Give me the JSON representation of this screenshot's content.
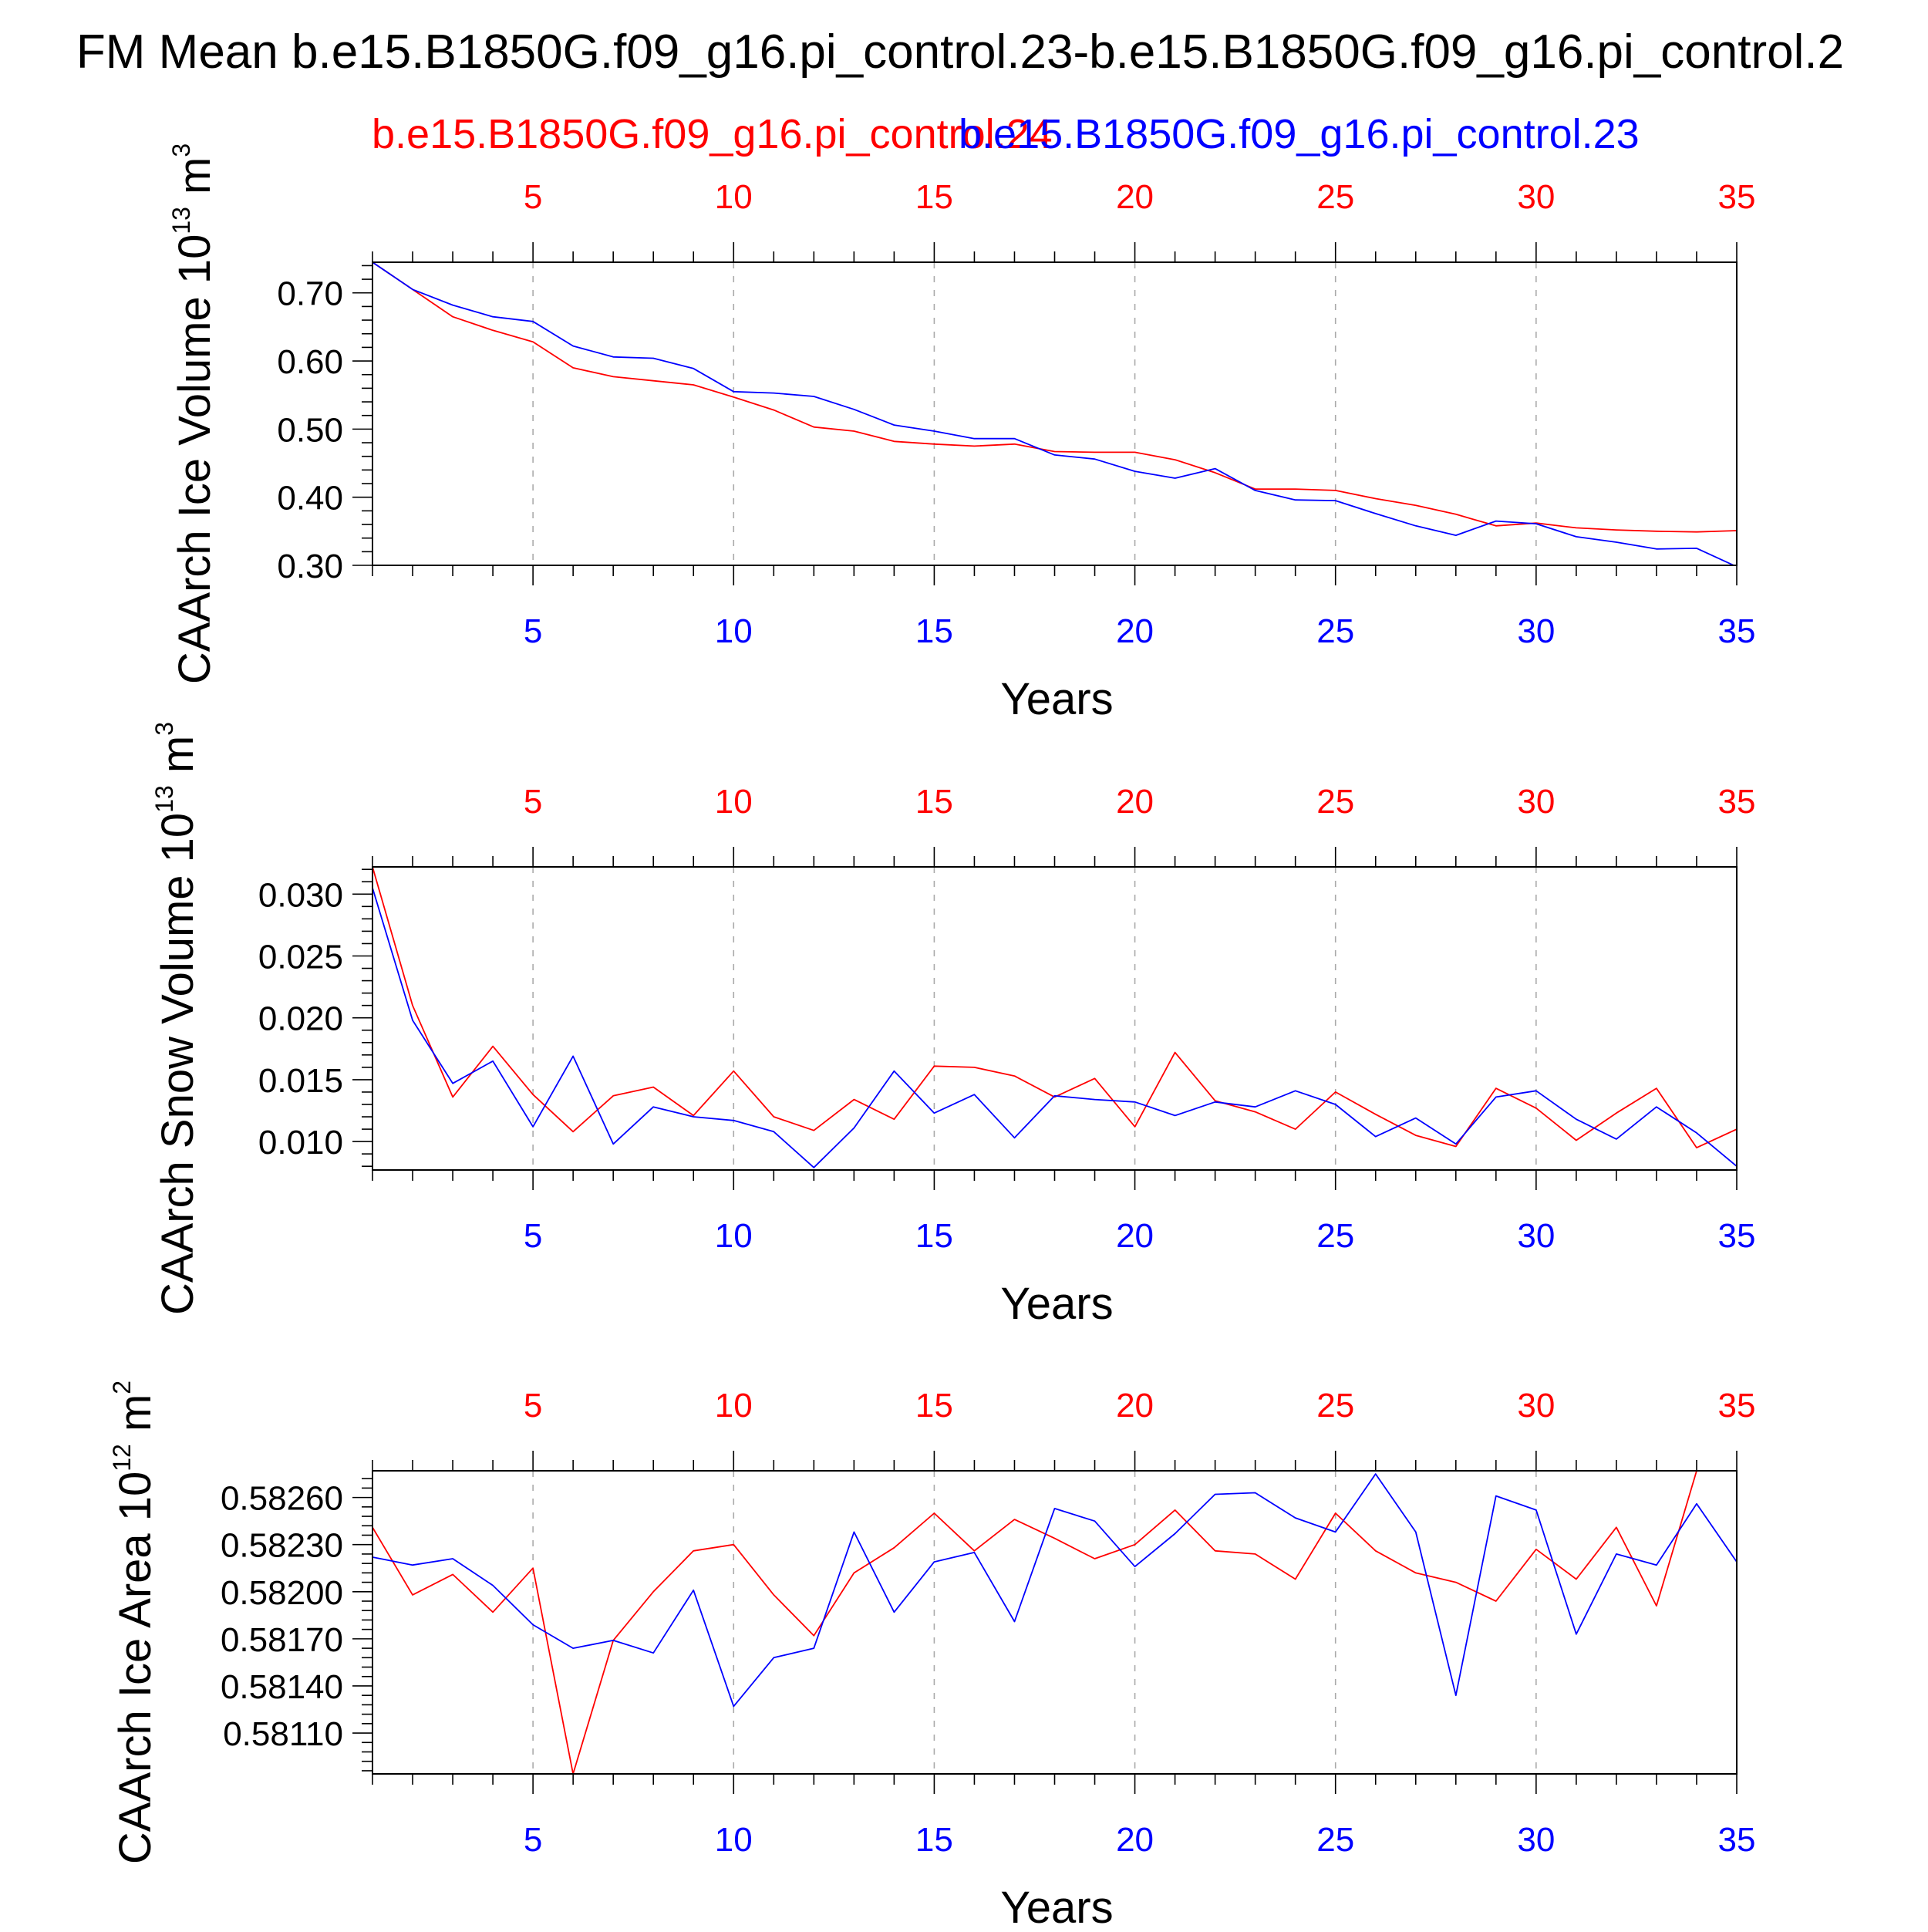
{
  "figure_title": "FM Mean b.e15.B1850G.f09_g16.pi_control.23-b.e15.B1850G.f09_g16.pi_control.2",
  "legend": {
    "red_label": "b.e15.B1850G.f09_g16.pi_control.24",
    "blue_label": "b.e15.B1850G.f09_g16.pi_control.23"
  },
  "colors": {
    "red": "#ff0000",
    "blue": "#0000ff",
    "axis": "#000000",
    "grid": "#aaaaaa"
  },
  "chart_data": [
    {
      "type": "line",
      "title": "",
      "ylabel": "CAArch Ice Volume 10",
      "ylabel_exp": "13",
      "ylabel_unit": " m",
      "ylabel_unit_exp": "3",
      "xlabel": "Years",
      "xlim": [
        1,
        35
      ],
      "ylim": [
        0.3,
        0.745
      ],
      "xticks": [
        5,
        10,
        15,
        20,
        25,
        30,
        35
      ],
      "xtick_labels": [
        "5",
        "10",
        "15",
        "20",
        "25",
        "30",
        "35"
      ],
      "yticks": [
        0.3,
        0.4,
        0.5,
        0.6,
        0.7
      ],
      "ytick_labels": [
        "0.30",
        "0.40",
        "0.50",
        "0.60",
        "0.70"
      ],
      "x": [
        1,
        2,
        3,
        4,
        5,
        6,
        7,
        8,
        9,
        10,
        11,
        12,
        13,
        14,
        15,
        16,
        17,
        18,
        19,
        20,
        21,
        22,
        23,
        24,
        25,
        26,
        27,
        28,
        29,
        30,
        31,
        32,
        33,
        34,
        35
      ],
      "series": [
        {
          "name": "b.e15.B1850G.f09_g16.pi_control.24",
          "color": "#ff0000",
          "values": [
            0.745,
            0.705,
            0.665,
            0.645,
            0.628,
            0.59,
            0.577,
            0.571,
            0.565,
            0.547,
            0.528,
            0.503,
            0.497,
            0.482,
            0.478,
            0.475,
            0.478,
            0.467,
            0.466,
            0.466,
            0.455,
            0.436,
            0.412,
            0.412,
            0.41,
            0.398,
            0.388,
            0.375,
            0.358,
            0.362,
            0.355,
            0.352,
            0.35,
            0.349,
            0.351
          ]
        },
        {
          "name": "b.e15.B1850G.f09_g16.pi_control.23",
          "color": "#0000ff",
          "values": [
            0.745,
            0.705,
            0.682,
            0.665,
            0.658,
            0.622,
            0.606,
            0.604,
            0.589,
            0.555,
            0.553,
            0.548,
            0.529,
            0.506,
            0.497,
            0.486,
            0.486,
            0.462,
            0.456,
            0.438,
            0.428,
            0.442,
            0.41,
            0.396,
            0.395,
            0.376,
            0.358,
            0.344,
            0.365,
            0.361,
            0.342,
            0.334,
            0.324,
            0.325,
            0.298
          ]
        }
      ]
    },
    {
      "type": "line",
      "title": "",
      "ylabel": "CAArch Snow Volume 10",
      "ylabel_exp": "13",
      "ylabel_unit": " m",
      "ylabel_unit_exp": "3",
      "xlabel": "Years",
      "xlim": [
        1,
        35
      ],
      "ylim": [
        0.0077,
        0.0322
      ],
      "xticks": [
        5,
        10,
        15,
        20,
        25,
        30,
        35
      ],
      "xtick_labels": [
        "5",
        "10",
        "15",
        "20",
        "25",
        "30",
        "35"
      ],
      "yticks": [
        0.01,
        0.015,
        0.02,
        0.025,
        0.03
      ],
      "ytick_labels": [
        "0.010",
        "0.015",
        "0.020",
        "0.025",
        "0.030"
      ],
      "x": [
        1,
        2,
        3,
        4,
        5,
        6,
        7,
        8,
        9,
        10,
        11,
        12,
        13,
        14,
        15,
        16,
        17,
        18,
        19,
        20,
        21,
        22,
        23,
        24,
        25,
        26,
        27,
        28,
        29,
        30,
        31,
        32,
        33,
        34,
        35
      ],
      "series": [
        {
          "name": "b.e15.B1850G.f09_g16.pi_control.24",
          "color": "#ff0000",
          "values": [
            0.0322,
            0.021,
            0.0136,
            0.0177,
            0.0138,
            0.0108,
            0.0137,
            0.0144,
            0.0121,
            0.0157,
            0.012,
            0.0109,
            0.0134,
            0.0118,
            0.0161,
            0.016,
            0.0153,
            0.0136,
            0.0151,
            0.0112,
            0.0172,
            0.0133,
            0.0124,
            0.011,
            0.014,
            0.0122,
            0.0105,
            0.0096,
            0.0143,
            0.0127,
            0.0101,
            0.0123,
            0.0143,
            0.0095,
            0.011
          ]
        },
        {
          "name": "b.e15.B1850G.f09_g16.pi_control.23",
          "color": "#0000ff",
          "values": [
            0.0305,
            0.0198,
            0.0147,
            0.0165,
            0.0112,
            0.0169,
            0.0098,
            0.0128,
            0.012,
            0.0117,
            0.0108,
            0.0079,
            0.0111,
            0.0157,
            0.0123,
            0.0138,
            0.0103,
            0.0137,
            0.0134,
            0.0132,
            0.0121,
            0.0132,
            0.0128,
            0.0141,
            0.013,
            0.0104,
            0.0119,
            0.0098,
            0.0136,
            0.0141,
            0.0118,
            0.0102,
            0.0128,
            0.0107,
            0.008
          ]
        }
      ]
    },
    {
      "type": "line",
      "title": "",
      "ylabel": "CAArch Ice Area 10",
      "ylabel_exp": "12",
      "ylabel_unit": " m",
      "ylabel_unit_exp": "2",
      "xlabel": "Years",
      "xlim": [
        1,
        35
      ],
      "ylim": [
        0.58084,
        0.58277
      ],
      "xticks": [
        5,
        10,
        15,
        20,
        25,
        30,
        35
      ],
      "xtick_labels": [
        "5",
        "10",
        "15",
        "20",
        "25",
        "30",
        "35"
      ],
      "yticks": [
        0.5811,
        0.5814,
        0.5817,
        0.582,
        0.5823,
        0.5826
      ],
      "ytick_labels": [
        "0.58110",
        "0.58140",
        "0.58170",
        "0.58200",
        "0.58230",
        "0.58260"
      ],
      "x": [
        1,
        2,
        3,
        4,
        5,
        6,
        7,
        8,
        9,
        10,
        11,
        12,
        13,
        14,
        15,
        16,
        17,
        18,
        19,
        20,
        21,
        22,
        23,
        24,
        25,
        26,
        27,
        28,
        29,
        30,
        31,
        32,
        33,
        34,
        35
      ],
      "series": [
        {
          "name": "b.e15.B1850G.f09_g16.pi_control.24",
          "color": "#ff0000",
          "values": [
            0.58241,
            0.58198,
            0.58211,
            0.58187,
            0.58215,
            0.58084,
            0.58169,
            0.582,
            0.58226,
            0.5823,
            0.58198,
            0.58172,
            0.58212,
            0.58228,
            0.5825,
            0.58226,
            0.58246,
            0.58234,
            0.58221,
            0.5823,
            0.58252,
            0.58226,
            0.58224,
            0.58208,
            0.5825,
            0.58226,
            0.58212,
            0.58206,
            0.58194,
            0.58227,
            0.58208,
            0.58241,
            0.58191,
            0.58277,
            0.58277
          ]
        },
        {
          "name": "b.e15.B1850G.f09_g16.pi_control.23",
          "color": "#0000ff",
          "values": [
            0.58222,
            0.58217,
            0.58221,
            0.58204,
            0.58179,
            0.58164,
            0.58169,
            0.58161,
            0.58201,
            0.58127,
            0.58158,
            0.58164,
            0.58238,
            0.58187,
            0.58219,
            0.58225,
            0.58181,
            0.58253,
            0.58245,
            0.58216,
            0.58237,
            0.58262,
            0.58263,
            0.58247,
            0.58238,
            0.58275,
            0.58238,
            0.58134,
            0.58261,
            0.58252,
            0.58173,
            0.58224,
            0.58217,
            0.58256,
            0.58219
          ]
        }
      ]
    }
  ]
}
